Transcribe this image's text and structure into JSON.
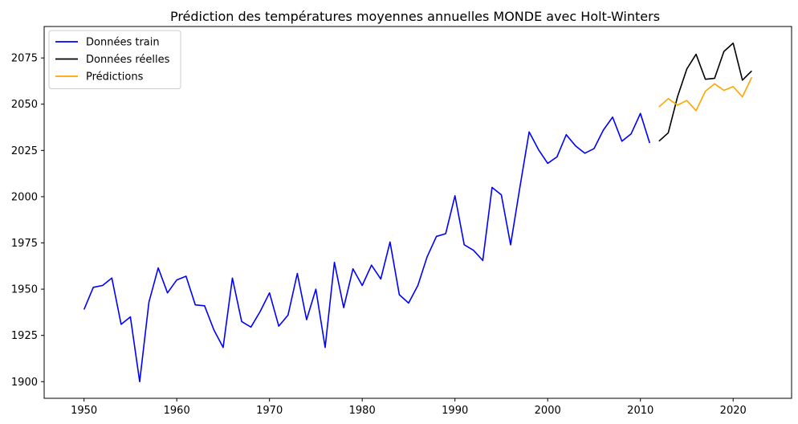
{
  "chart_data": {
    "type": "line",
    "title": "Prédiction des températures moyennes annuelles MONDE avec Holt-Winters",
    "xlabel": "",
    "ylabel": "",
    "xlim": [
      1945.7,
      2026.3
    ],
    "ylim": [
      1891,
      2092
    ],
    "xticks": [
      1950,
      1960,
      1970,
      1980,
      1990,
      2000,
      2010,
      2020
    ],
    "yticks": [
      1900,
      1925,
      1950,
      1975,
      2000,
      2025,
      2050,
      2075
    ],
    "grid": false,
    "legend_position": "top-left",
    "series": [
      {
        "name": "Données train",
        "color": "#0000ff",
        "x": [
          1950,
          1951,
          1952,
          1953,
          1954,
          1955,
          1956,
          1957,
          1958,
          1959,
          1960,
          1961,
          1962,
          1963,
          1964,
          1965,
          1966,
          1967,
          1968,
          1969,
          1970,
          1971,
          1972,
          1973,
          1974,
          1975,
          1976,
          1977,
          1978,
          1979,
          1980,
          1981,
          1982,
          1983,
          1984,
          1985,
          1986,
          1987,
          1988,
          1989,
          1990,
          1991,
          1992,
          1993,
          1994,
          1995,
          1996,
          1997,
          1998,
          1999,
          2000,
          2001,
          2002,
          2003,
          2004,
          2005,
          2006,
          2007,
          2008,
          2009,
          2010,
          2011
        ],
        "y": [
          1939,
          1951,
          1952,
          1956,
          1931,
          1935,
          1900,
          1943,
          1961.5,
          1948,
          1955,
          1957,
          1941.5,
          1941,
          1928,
          1918.5,
          1956,
          1932.5,
          1929.5,
          1938,
          1948,
          1930,
          1936,
          1958.5,
          1933.5,
          1950,
          1918.5,
          1964.5,
          1940,
          1961,
          1952,
          1963,
          1955.5,
          1975.5,
          1947,
          1942.5,
          1952,
          1967.5,
          1978.5,
          1980,
          2000.5,
          1974,
          1971,
          1965.5,
          2005,
          2001,
          1974,
          2005,
          2035,
          2025.5,
          2018,
          2021.5,
          2033.5,
          2027.5,
          2023.5,
          2026,
          2036,
          2043,
          2030,
          2034,
          2045,
          2029
        ]
      },
      {
        "name": "Données réelles",
        "color": "#000000",
        "x": [
          2012,
          2013,
          2014,
          2015,
          2016,
          2017,
          2018,
          2019,
          2020,
          2021,
          2022
        ],
        "y": [
          2030,
          2034.5,
          2054,
          2069,
          2077,
          2063.5,
          2064,
          2078.5,
          2083,
          2063,
          2068
        ]
      },
      {
        "name": "Prédictions",
        "color": "#ffa500",
        "x": [
          2012,
          2013,
          2014,
          2015,
          2016,
          2017,
          2018,
          2019,
          2020,
          2021,
          2022
        ],
        "y": [
          2048.5,
          2053,
          2049.5,
          2052,
          2046.5,
          2057,
          2061,
          2057.5,
          2059.5,
          2054,
          2064.5
        ]
      }
    ]
  }
}
